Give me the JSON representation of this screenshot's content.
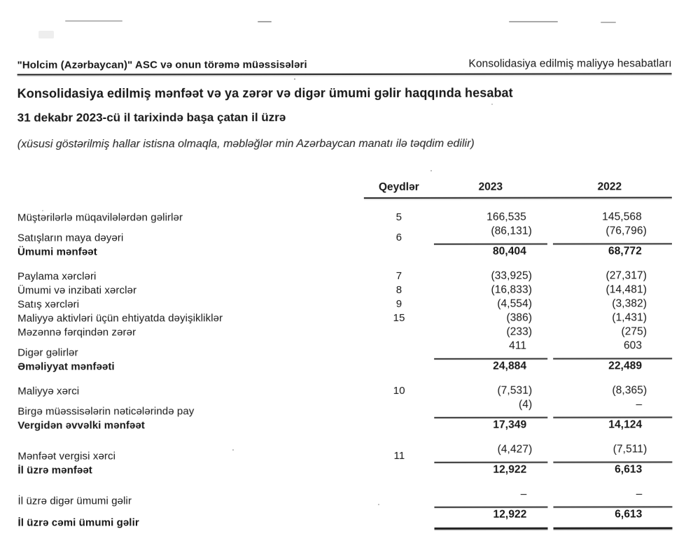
{
  "page": {
    "header_left": "\"Holcim (Azərbaycan)\" ASC və onun törəmə müəssisələri",
    "header_right": "Konsolidasiya edilmiş maliyyə hesabatları",
    "title": "Konsolidasiya edilmiş mənfəət və ya zərər və digər ümumi gəlir haqqında hesabat",
    "period": "31 dekabr 2023-cü il tarixində başa çatan il üzrə",
    "currency_note": "(xüsusi göstərilmiş hallar istisna olmaqla, məbləğlər min Azərbaycan manatı ilə təqdim edilir)"
  },
  "table": {
    "headers": {
      "notes": "Qeydlər",
      "y2023": "2023",
      "y2022": "2022"
    },
    "rows": [
      {
        "label": "Müştərilərlə müqavilələrdən gəlirlər",
        "note": "5",
        "y2023": "166,535",
        "y2022": "145,568"
      },
      {
        "label": "Satışların maya dəyəri",
        "note": "6",
        "y2023": "(86,131)",
        "y2022": "(76,796)",
        "rule": true
      },
      {
        "label": "Ümumi mənfəət",
        "note": "",
        "y2023": "80,404",
        "y2022": "68,772",
        "bold": true
      },
      {
        "label": "Paylama xərcləri",
        "note": "7",
        "y2023": "(33,925)",
        "y2022": "(27,317)",
        "gap": true
      },
      {
        "label": "Ümumi və inzibati xərclər",
        "note": "8",
        "y2023": "(16,833)",
        "y2022": "(14,481)"
      },
      {
        "label": "Satış xərcləri",
        "note": "9",
        "y2023": "(4,554)",
        "y2022": "(3,382)"
      },
      {
        "label": "Maliyyə aktivləri üçün ehtiyatda dəyişikliklər",
        "note": "15",
        "y2023": "(386)",
        "y2022": "(1,431)"
      },
      {
        "label": "Məzənnə fərqindən zərər",
        "note": "",
        "y2023": "(233)",
        "y2022": "(275)"
      },
      {
        "label": "Digər gəlirlər",
        "note": "",
        "y2023": "411",
        "y2022": "603",
        "rule": true
      },
      {
        "label": "Əməliyyat mənfəəti",
        "note": "",
        "y2023": "24,884",
        "y2022": "22,489",
        "bold": true
      },
      {
        "label": "Maliyyə xərci",
        "note": "10",
        "y2023": "(7,531)",
        "y2022": "(8,365)",
        "gap": true
      },
      {
        "label": "Birgə müəssisələrin nəticələrində pay",
        "note": "",
        "y2023": "(4)",
        "y2022": "–",
        "rule": true
      },
      {
        "label": "Vergidən əvvəlki mənfəət",
        "note": "",
        "y2023": "17,349",
        "y2022": "14,124",
        "bold": true
      },
      {
        "label": "Mənfəət vergisi xərci",
        "note": "11",
        "y2023": "(4,427)",
        "y2022": "(7,511)",
        "gap": true,
        "rule": true
      },
      {
        "label": "İl üzrə mənfəət",
        "note": "",
        "y2023": "12,922",
        "y2022": "6,613",
        "bold": true
      },
      {
        "label": "İl üzrə digər ümumi gəlir",
        "note": "",
        "y2023": "–",
        "y2022": "–",
        "gap": true,
        "rule": true
      },
      {
        "label": "İl üzrə cəmi ümumi gəlir",
        "note": "",
        "y2023": "12,922",
        "y2022": "6,613",
        "bold": true,
        "thick": true
      }
    ]
  }
}
